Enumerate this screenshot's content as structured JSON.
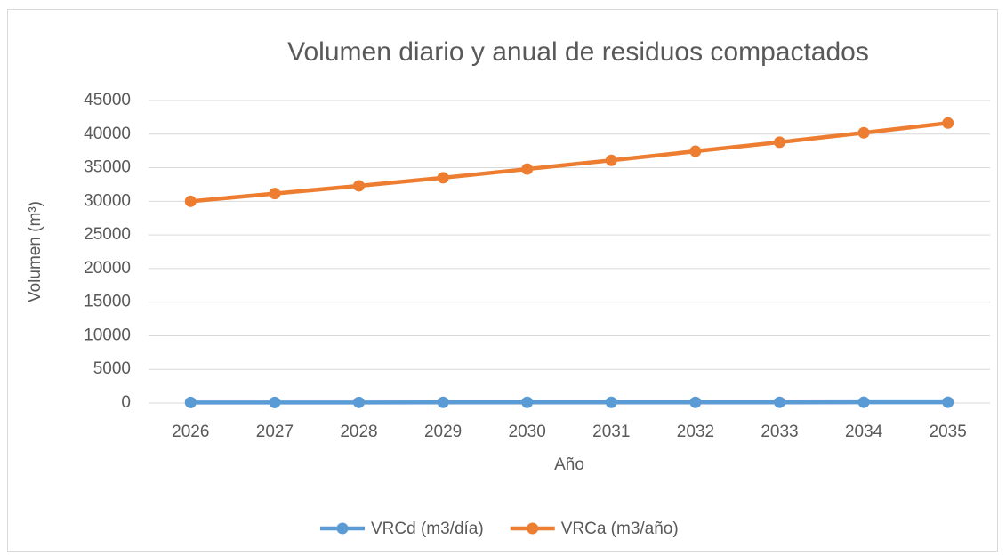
{
  "chart_data": {
    "type": "line",
    "title": "Volumen diario y anual de residuos compactados",
    "x_label": "Año",
    "y_label": "Volumen (m³)",
    "categories": [
      "2026",
      "2027",
      "2028",
      "2029",
      "2030",
      "2031",
      "2032",
      "2033",
      "2034",
      "2035"
    ],
    "series": [
      {
        "name": "VRCd (m3/día)",
        "color": "#5b9bd5",
        "values": [
          82,
          85,
          89,
          92,
          95,
          99,
          103,
          106,
          110,
          114
        ]
      },
      {
        "name": "VRCa (m3/año)",
        "color": "#ed7d31",
        "values": [
          30000,
          31150,
          32300,
          33500,
          34800,
          36100,
          37450,
          38800,
          40200,
          41650
        ]
      }
    ],
    "ylim": [
      0,
      45000
    ],
    "yticks": [
      0,
      5000,
      10000,
      15000,
      20000,
      25000,
      30000,
      35000,
      40000,
      45000
    ],
    "grid": true,
    "legend": "bottom"
  }
}
